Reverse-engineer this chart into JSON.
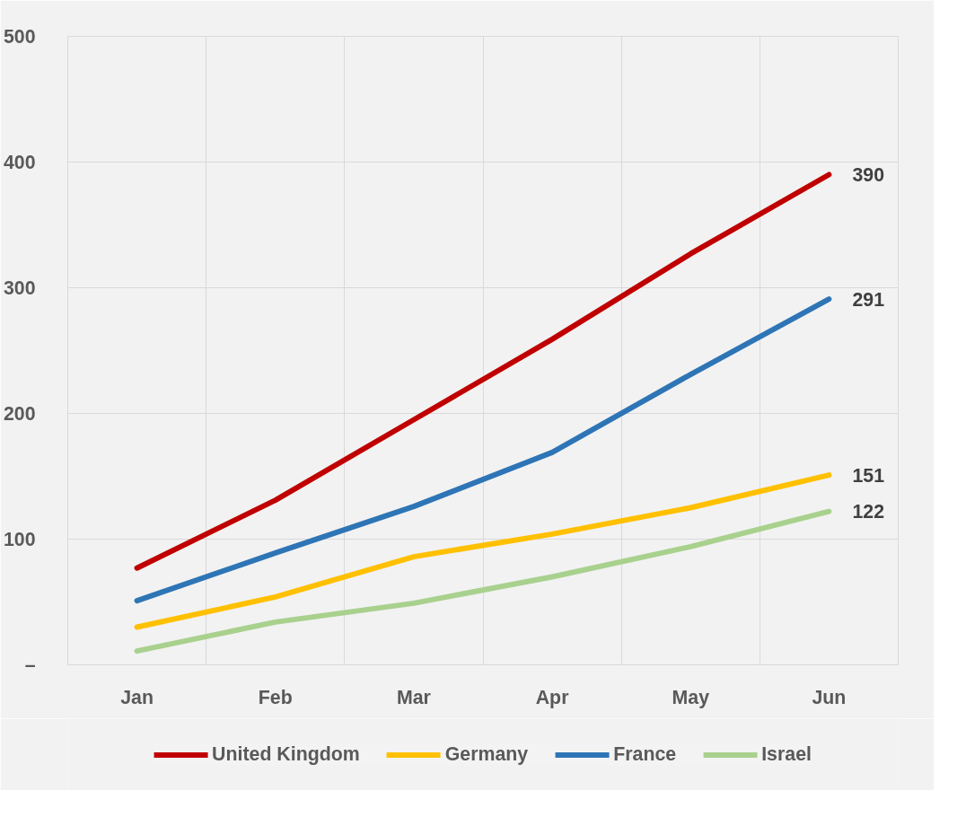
{
  "chart_data": {
    "type": "line",
    "categories": [
      "Jan",
      "Feb",
      "Mar",
      "Apr",
      "May",
      "Jun"
    ],
    "series": [
      {
        "name": "United Kingdom",
        "color": "#c00000",
        "values": [
          77,
          131,
          195,
          259,
          327,
          390
        ],
        "value_labels": [
          null,
          null,
          null,
          null,
          null,
          "390"
        ]
      },
      {
        "name": "Germany",
        "color": "#ffc000",
        "values": [
          30,
          54,
          86,
          104,
          125,
          151
        ],
        "value_labels": [
          null,
          null,
          null,
          null,
          null,
          "151"
        ]
      },
      {
        "name": "France",
        "color": "#2e75b6",
        "values": [
          51,
          89,
          126,
          169,
          231,
          291
        ],
        "value_labels": [
          null,
          null,
          null,
          null,
          null,
          "291"
        ]
      },
      {
        "name": "Israel",
        "color": "#a9d18e",
        "values": [
          11,
          34,
          49,
          70,
          94,
          122
        ],
        "value_labels": [
          null,
          null,
          null,
          null,
          null,
          "122"
        ]
      }
    ],
    "ylim": [
      0,
      500
    ],
    "yticks": [
      {
        "value": 0,
        "label": "–"
      },
      100,
      200,
      300,
      400,
      500
    ],
    "grid": true,
    "legend": "bottom",
    "marker": "none",
    "line_style": "solid"
  }
}
